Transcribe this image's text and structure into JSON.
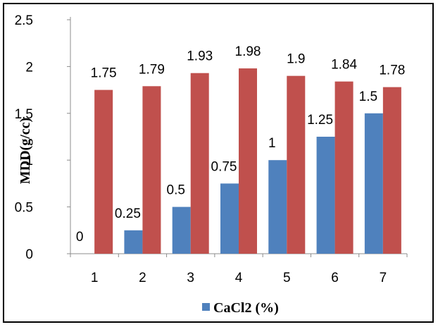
{
  "chart_data": {
    "type": "bar",
    "categories": [
      "1",
      "2",
      "3",
      "4",
      "5",
      "6",
      "7"
    ],
    "series": [
      {
        "name": "CaCl2 (%)",
        "color": "#4F81BD",
        "values": [
          0,
          0.25,
          0.5,
          0.75,
          1,
          1.25,
          1.5
        ]
      },
      {
        "name": "",
        "color": "#C0504D",
        "values": [
          1.75,
          1.79,
          1.93,
          1.98,
          1.9,
          1.84,
          1.78
        ]
      }
    ],
    "series_labels": [
      [
        "0",
        "0.25",
        "0.5",
        "0.75",
        "1",
        "1.25",
        "1.5"
      ],
      [
        "1.75",
        "1.79",
        "1.93",
        "1.98",
        "1.9",
        "1.84",
        "1.78"
      ]
    ],
    "title": "",
    "xlabel": "",
    "ylabel": "MDD(g/cc)",
    "ylim": [
      0,
      2.5
    ],
    "yticks": [
      "0",
      "0.5",
      "1",
      "1.5",
      "2",
      "2.5"
    ],
    "grid": false,
    "legend": "bottom",
    "legend_label": "CaCl2 (%)"
  }
}
